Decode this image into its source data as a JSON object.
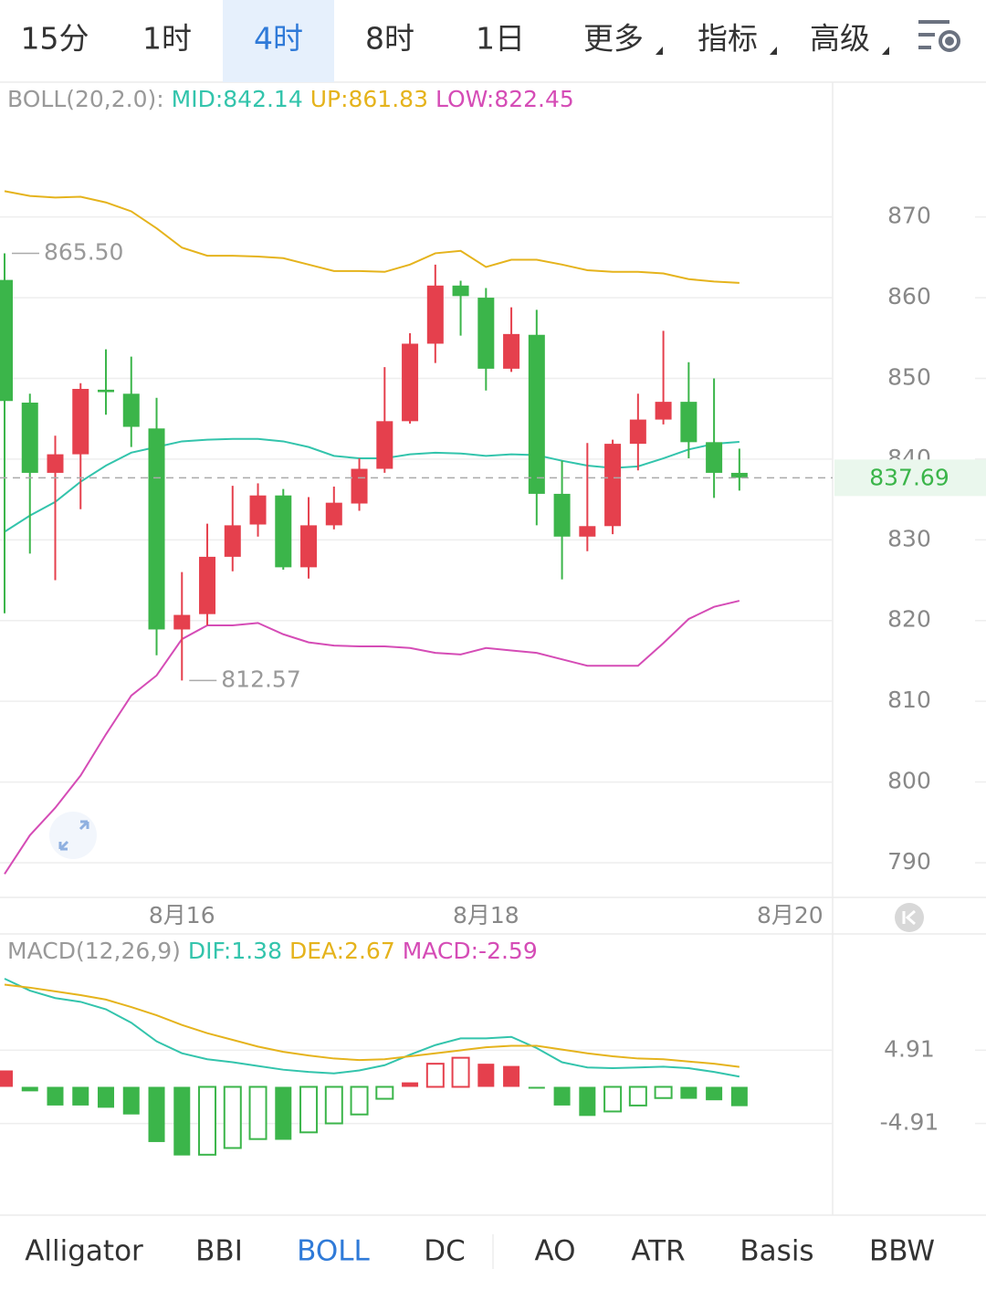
{
  "tabs": [
    {
      "label": "15分"
    },
    {
      "label": "1时"
    },
    {
      "label": "4时"
    },
    {
      "label": "8时"
    },
    {
      "label": "1日"
    },
    {
      "label": "更多",
      "menu": true
    },
    {
      "label": "指标",
      "menu": true
    },
    {
      "label": "高级",
      "menu": true
    }
  ],
  "selected_tab": 2,
  "chart_data": [
    {
      "type": "candlestick",
      "legend_title": "BOLL(20,2.0):",
      "up_color": "#e5404d",
      "down_color": "#3bb54a",
      "grid": true,
      "xlim": [
        -0.18,
        32.68
      ],
      "xticks": [
        {
          "value": 7,
          "label": "8月16"
        },
        {
          "value": 19,
          "label": "8月18"
        },
        {
          "value": 31,
          "label": "8月20"
        }
      ],
      "ylim": [
        785.7,
        886.7
      ],
      "yticks": [
        790,
        800,
        810,
        820,
        830,
        840,
        850,
        860,
        870
      ],
      "last_price": 837.69,
      "max_label": {
        "value": 865.5,
        "label": "865.50"
      },
      "min_label": {
        "value": 812.57,
        "label": "812.57"
      },
      "candles": {
        "open": [
          862.2,
          847.0,
          838.3,
          840.6,
          848.6,
          848.1,
          843.8,
          818.9,
          820.8,
          827.9,
          831.9,
          835.5,
          826.6,
          831.8,
          834.5,
          838.8,
          844.7,
          854.3,
          861.5,
          860.0,
          851.2,
          855.4,
          835.7,
          830.4,
          831.7,
          841.9,
          844.9,
          847.1,
          842.1,
          838.3
        ],
        "high": [
          865.5,
          848.1,
          842.9,
          849.4,
          853.6,
          852.7,
          847.6,
          826.0,
          832.0,
          836.7,
          837.0,
          836.3,
          835.3,
          836.6,
          840.1,
          851.4,
          855.6,
          864.1,
          862.1,
          861.2,
          858.8,
          858.5,
          839.8,
          842.0,
          842.4,
          848.1,
          855.9,
          852.0,
          850.0,
          841.3
        ],
        "low": [
          820.9,
          828.3,
          825.0,
          833.8,
          845.5,
          841.5,
          815.7,
          812.57,
          819.4,
          826.1,
          830.4,
          826.3,
          825.2,
          831.3,
          833.6,
          838.3,
          844.4,
          851.9,
          855.3,
          848.5,
          850.8,
          831.8,
          825.1,
          828.6,
          830.7,
          838.6,
          844.3,
          840.1,
          835.2,
          836.1
        ],
        "close": [
          847.2,
          838.3,
          840.6,
          848.7,
          848.3,
          844.0,
          818.9,
          820.7,
          827.9,
          831.8,
          835.5,
          826.6,
          831.8,
          834.6,
          838.8,
          844.7,
          854.3,
          861.5,
          860.2,
          851.2,
          855.5,
          835.7,
          830.4,
          831.7,
          841.9,
          844.9,
          847.1,
          842.1,
          838.3,
          837.69
        ]
      },
      "series": [
        {
          "name": "MID:842.14",
          "color": "#33c4ac",
          "values": [
            831.0,
            833.0,
            834.7,
            837.2,
            839.2,
            840.8,
            841.5,
            842.2,
            842.4,
            842.5,
            842.5,
            842.2,
            841.5,
            840.4,
            840.1,
            840.1,
            840.6,
            840.8,
            840.7,
            840.4,
            840.6,
            840.5,
            839.8,
            839.2,
            838.9,
            839.1,
            840.1,
            841.2,
            841.9,
            842.14
          ]
        },
        {
          "name": "UP:861.83",
          "color": "#e5b31c",
          "values": [
            873.2,
            872.6,
            872.4,
            872.5,
            871.8,
            870.7,
            868.6,
            866.2,
            865.2,
            865.2,
            865.1,
            864.9,
            864.1,
            863.3,
            863.3,
            863.2,
            864.1,
            865.5,
            865.8,
            863.8,
            864.7,
            864.7,
            864.1,
            863.4,
            863.2,
            863.2,
            863.0,
            862.3,
            862.0,
            861.83
          ]
        },
        {
          "name": "LOW:822.45",
          "color": "#d54cb6",
          "values": [
            788.6,
            793.4,
            796.8,
            800.8,
            805.9,
            810.7,
            813.2,
            817.7,
            819.4,
            819.4,
            819.7,
            818.3,
            817.3,
            816.9,
            816.8,
            816.8,
            816.6,
            816.0,
            815.8,
            816.6,
            816.3,
            816.0,
            815.2,
            814.4,
            814.4,
            814.4,
            817.2,
            820.2,
            821.7,
            822.45
          ]
        }
      ]
    },
    {
      "type": "macd",
      "legend_title": "MACD(12,26,9)",
      "up_color": "#e5404d",
      "down_color": "#3bb54a",
      "grid": true,
      "xlim": [
        -0.18,
        32.68
      ],
      "ylim": [
        -17.2,
        20.5
      ],
      "yticks": [
        4.91,
        -4.91
      ],
      "series": [
        {
          "name": "DIF:1.38",
          "color": "#33c4ac",
          "values": [
            14.5,
            12.9,
            11.9,
            11.4,
            10.4,
            8.6,
            6.1,
            4.5,
            3.7,
            3.3,
            2.8,
            2.3,
            2.0,
            1.8,
            2.2,
            2.9,
            4.3,
            5.6,
            6.5,
            6.5,
            6.7,
            5.2,
            3.3,
            2.6,
            2.5,
            2.6,
            2.7,
            2.5,
            2.0,
            1.38
          ]
        },
        {
          "name": "DEA:2.67",
          "color": "#e5b31c",
          "values": [
            13.7,
            13.3,
            12.8,
            12.3,
            11.7,
            10.7,
            9.6,
            8.3,
            7.2,
            6.3,
            5.4,
            4.7,
            4.2,
            3.8,
            3.6,
            3.7,
            4.1,
            4.5,
            4.9,
            5.3,
            5.5,
            5.5,
            5.0,
            4.5,
            4.1,
            3.8,
            3.7,
            3.4,
            3.1,
            2.67
          ]
        }
      ],
      "histogram": {
        "name": "MACD:-2.59",
        "color": "#d54cb6",
        "values": [
          2.2,
          -0.6,
          -2.5,
          -2.5,
          -2.8,
          -3.7,
          -7.4,
          -9.2,
          -9.1,
          -8.2,
          -7.0,
          -7.1,
          -6.1,
          -4.9,
          -3.7,
          -1.6,
          0.6,
          3.1,
          3.9,
          3.1,
          2.8,
          -0.2,
          -2.5,
          -3.9,
          -3.3,
          -2.5,
          -1.5,
          -1.6,
          -1.8,
          -2.59
        ]
      }
    }
  ],
  "indicator_tabs": [
    "Alligator",
    "BBI",
    "BOLL",
    "DC",
    "AO",
    "ATR",
    "Basis",
    "BBW"
  ],
  "selected_indicator": 2
}
